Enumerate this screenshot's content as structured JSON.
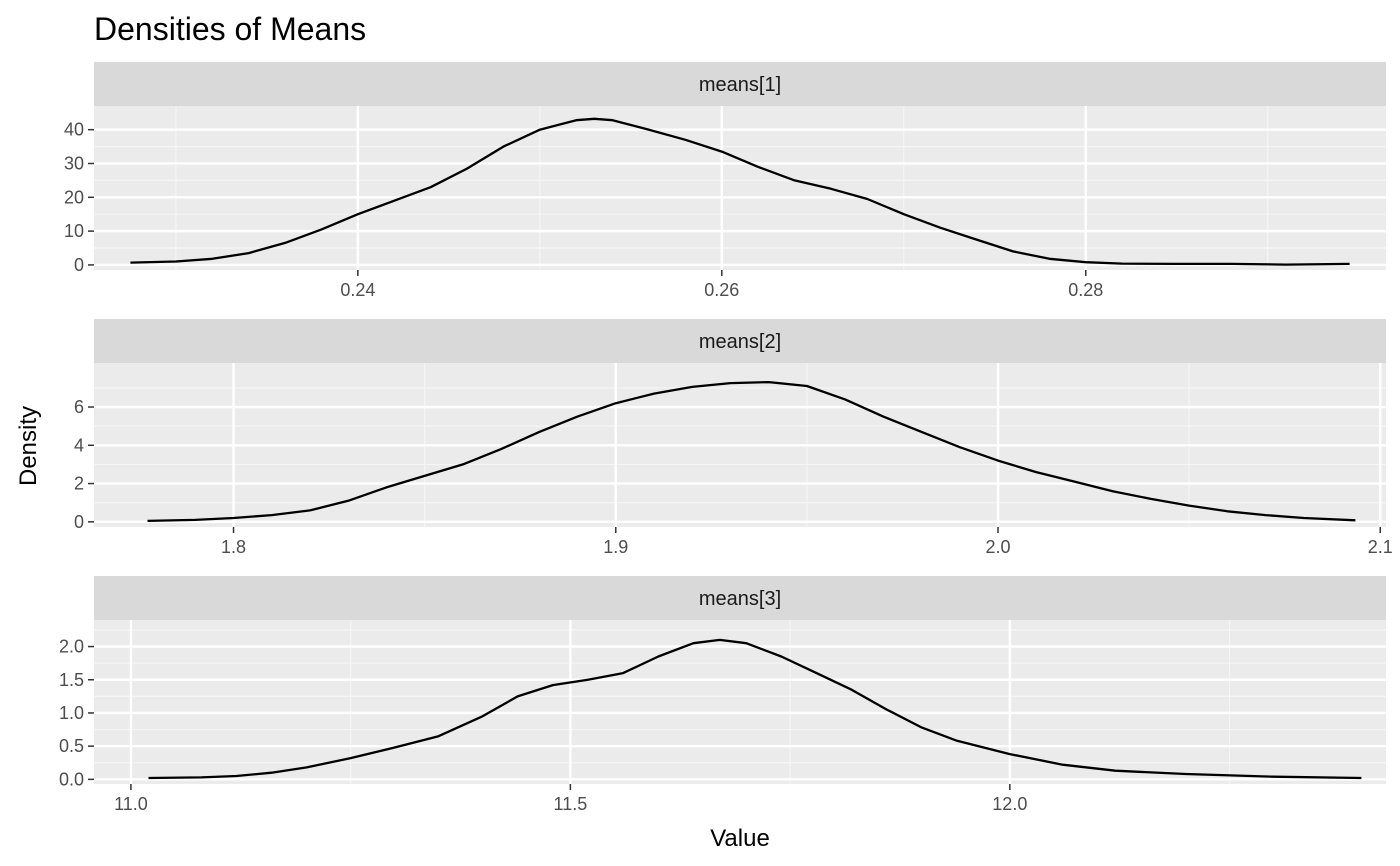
{
  "chart_data": {
    "type": "line",
    "title": "Densities of Means",
    "xlabel": "Value",
    "ylabel": "Density",
    "grid": true,
    "legend": "none",
    "panels": [
      {
        "strip": "means[1]",
        "xlim": [
          0.2255,
          0.2965
        ],
        "ylim": [
          -1.5,
          47
        ],
        "xticks": [
          0.24,
          0.26,
          0.28
        ],
        "xtick_labels": [
          "0.24",
          "0.26",
          "0.28"
        ],
        "xminor": [
          0.23,
          0.25,
          0.27,
          0.29
        ],
        "yticks": [
          0,
          10,
          20,
          30,
          40
        ],
        "ytick_labels": [
          "0",
          "10",
          "20",
          "30",
          "40"
        ],
        "yminor": [
          5,
          15,
          25,
          35
        ],
        "x": [
          0.2275,
          0.23,
          0.232,
          0.234,
          0.236,
          0.238,
          0.24,
          0.242,
          0.244,
          0.246,
          0.248,
          0.25,
          0.252,
          0.253,
          0.254,
          0.256,
          0.258,
          0.26,
          0.262,
          0.264,
          0.266,
          0.268,
          0.27,
          0.272,
          0.274,
          0.276,
          0.278,
          0.28,
          0.282,
          0.285,
          0.288,
          0.291,
          0.2945
        ],
        "y": [
          0.7,
          1.0,
          1.8,
          3.5,
          6.5,
          10.5,
          15.0,
          19.0,
          23.0,
          28.5,
          35.0,
          40.0,
          42.8,
          43.2,
          42.8,
          40.0,
          37.0,
          33.5,
          29.0,
          25.0,
          22.5,
          19.5,
          15.0,
          11.0,
          7.5,
          4.0,
          1.8,
          0.8,
          0.4,
          0.3,
          0.3,
          0.1,
          0.3
        ]
      },
      {
        "strip": "means[2]",
        "xlim": [
          1.7635,
          2.1015
        ],
        "ylim": [
          -0.27,
          8.3
        ],
        "xticks": [
          1.8,
          1.9,
          2.0,
          2.1
        ],
        "xtick_labels": [
          "1.8",
          "1.9",
          "2.0",
          "2.1"
        ],
        "xminor": [
          1.85,
          1.95,
          2.05
        ],
        "yticks": [
          0,
          2,
          4,
          6
        ],
        "ytick_labels": [
          "0",
          "2",
          "4",
          "6"
        ],
        "yminor": [
          1,
          3,
          5,
          7
        ],
        "x": [
          1.7775,
          1.79,
          1.8,
          1.81,
          1.82,
          1.83,
          1.84,
          1.85,
          1.86,
          1.87,
          1.88,
          1.89,
          1.9,
          1.91,
          1.92,
          1.93,
          1.94,
          1.95,
          1.96,
          1.97,
          1.98,
          1.99,
          2.0,
          2.01,
          2.02,
          2.03,
          2.04,
          2.05,
          2.06,
          2.07,
          2.08,
          2.0935
        ],
        "y": [
          0.05,
          0.1,
          0.2,
          0.35,
          0.6,
          1.1,
          1.8,
          2.4,
          3.0,
          3.8,
          4.7,
          5.5,
          6.2,
          6.7,
          7.05,
          7.25,
          7.3,
          7.1,
          6.4,
          5.5,
          4.7,
          3.9,
          3.2,
          2.6,
          2.1,
          1.6,
          1.2,
          0.85,
          0.55,
          0.35,
          0.2,
          0.08
        ]
      },
      {
        "strip": "means[3]",
        "xlim": [
          10.958,
          12.428
        ],
        "ylim": [
          -0.07,
          2.4
        ],
        "xticks": [
          11.0,
          11.5,
          12.0
        ],
        "xtick_labels": [
          "11.0",
          "11.5",
          "12.0"
        ],
        "xminor": [
          11.25,
          11.75,
          12.25
        ],
        "yticks": [
          0.0,
          0.5,
          1.0,
          1.5,
          2.0
        ],
        "ytick_labels": [
          "0.0",
          "0.5",
          "1.0",
          "1.5",
          "2.0"
        ],
        "yminor": [
          0.25,
          0.75,
          1.25,
          1.75,
          2.25
        ],
        "x": [
          11.02,
          11.08,
          11.12,
          11.16,
          11.2,
          11.25,
          11.3,
          11.35,
          11.4,
          11.44,
          11.48,
          11.52,
          11.56,
          11.6,
          11.64,
          11.67,
          11.7,
          11.74,
          11.78,
          11.82,
          11.86,
          11.9,
          11.94,
          12.0,
          12.06,
          12.12,
          12.2,
          12.3,
          12.4
        ],
        "y": [
          0.02,
          0.03,
          0.05,
          0.1,
          0.18,
          0.32,
          0.48,
          0.65,
          0.95,
          1.25,
          1.42,
          1.5,
          1.6,
          1.85,
          2.05,
          2.1,
          2.05,
          1.85,
          1.6,
          1.35,
          1.05,
          0.78,
          0.58,
          0.38,
          0.22,
          0.13,
          0.08,
          0.04,
          0.02
        ]
      }
    ]
  },
  "colors": {
    "panel_bg": "#ebebeb",
    "strip_bg": "#d9d9d9",
    "grid_major": "#ffffff",
    "grid_minor": "#f5f5f5",
    "line": "#000000",
    "tick": "#333333"
  }
}
